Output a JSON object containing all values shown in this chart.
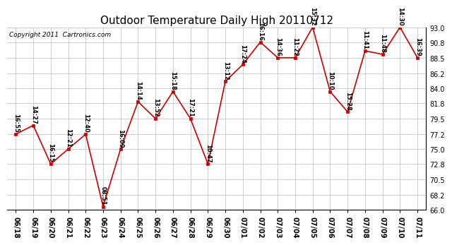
{
  "title": "Outdoor Temperature Daily High 20110712",
  "copyright": "Copyright 2011  Cartronics.com",
  "x_labels": [
    "06/18",
    "06/19",
    "06/20",
    "06/21",
    "06/22",
    "06/23",
    "06/24",
    "06/25",
    "06/26",
    "06/27",
    "06/28",
    "06/29",
    "06/30",
    "07/01",
    "07/02",
    "07/03",
    "07/04",
    "07/05",
    "07/06",
    "07/07",
    "07/08",
    "07/09",
    "07/10",
    "07/11"
  ],
  "y_values": [
    77.2,
    78.5,
    72.8,
    75.0,
    77.2,
    66.5,
    75.0,
    82.0,
    79.5,
    83.5,
    79.5,
    72.8,
    85.0,
    87.5,
    90.8,
    88.5,
    88.5,
    93.0,
    83.5,
    80.5,
    89.5,
    89.0,
    93.0,
    88.5
  ],
  "point_labels": [
    "16:55",
    "14:27",
    "16:15",
    "12:21",
    "12:40",
    "08:51",
    "16:09",
    "14:14",
    "13:52",
    "15:18",
    "17:21",
    "10:47",
    "13:12",
    "17:24",
    "16:16",
    "14:36",
    "11:22",
    "15:32",
    "10:10",
    "15:28",
    "11:41",
    "11:48",
    "14:30",
    "16:39"
  ],
  "ylim": [
    66.0,
    93.0
  ],
  "yticks": [
    66.0,
    68.2,
    70.5,
    72.8,
    75.0,
    77.2,
    79.5,
    81.8,
    84.0,
    86.2,
    88.5,
    90.8,
    93.0
  ],
  "line_color": "#cc0000",
  "marker_color": "#cc0000",
  "bg_color": "#ffffff",
  "grid_color": "#bbbbbb",
  "title_fontsize": 11,
  "label_fontsize": 7,
  "point_label_fontsize": 6,
  "copyright_fontsize": 6.5
}
